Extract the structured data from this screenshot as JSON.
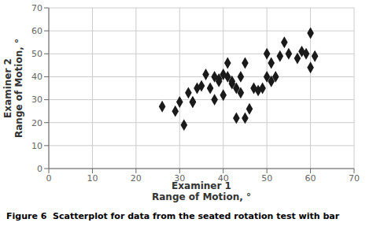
{
  "chart_data": {
    "type": "scatter",
    "caption": "Figure 6  Scatterplot for data from the seated rotation test with bar",
    "xlabel": "Examiner 1\nRange of Motion, °",
    "ylabel": "Examiner 2\nRange of Motion, °",
    "x": [
      26,
      29,
      30,
      31,
      32,
      33,
      33,
      34,
      35,
      36,
      37,
      38,
      38,
      39,
      39,
      40,
      40,
      41,
      41,
      42,
      42,
      43,
      43,
      44,
      44,
      45,
      45,
      46,
      47,
      48,
      49,
      50,
      50,
      51,
      51,
      52,
      53,
      54,
      55,
      57,
      58,
      59,
      60,
      60,
      61
    ],
    "y": [
      27,
      25,
      29,
      19,
      33,
      29,
      29,
      35,
      36,
      41,
      35,
      40,
      30,
      39,
      38,
      41,
      32,
      40,
      46,
      37,
      38,
      22,
      35,
      33,
      40,
      22,
      46,
      26,
      35,
      34,
      35,
      50,
      40,
      38,
      46,
      40,
      49,
      55,
      50,
      48,
      51,
      50,
      59,
      44,
      49
    ],
    "xlim": [
      0,
      70
    ],
    "ylim": [
      0,
      70
    ],
    "xticks": [
      0,
      10,
      20,
      30,
      40,
      50,
      60,
      70
    ],
    "yticks": [
      0,
      10,
      20,
      30,
      40,
      50,
      60,
      70
    ],
    "color": "#1a1a1a",
    "marker": "diamond",
    "grid": true
  }
}
